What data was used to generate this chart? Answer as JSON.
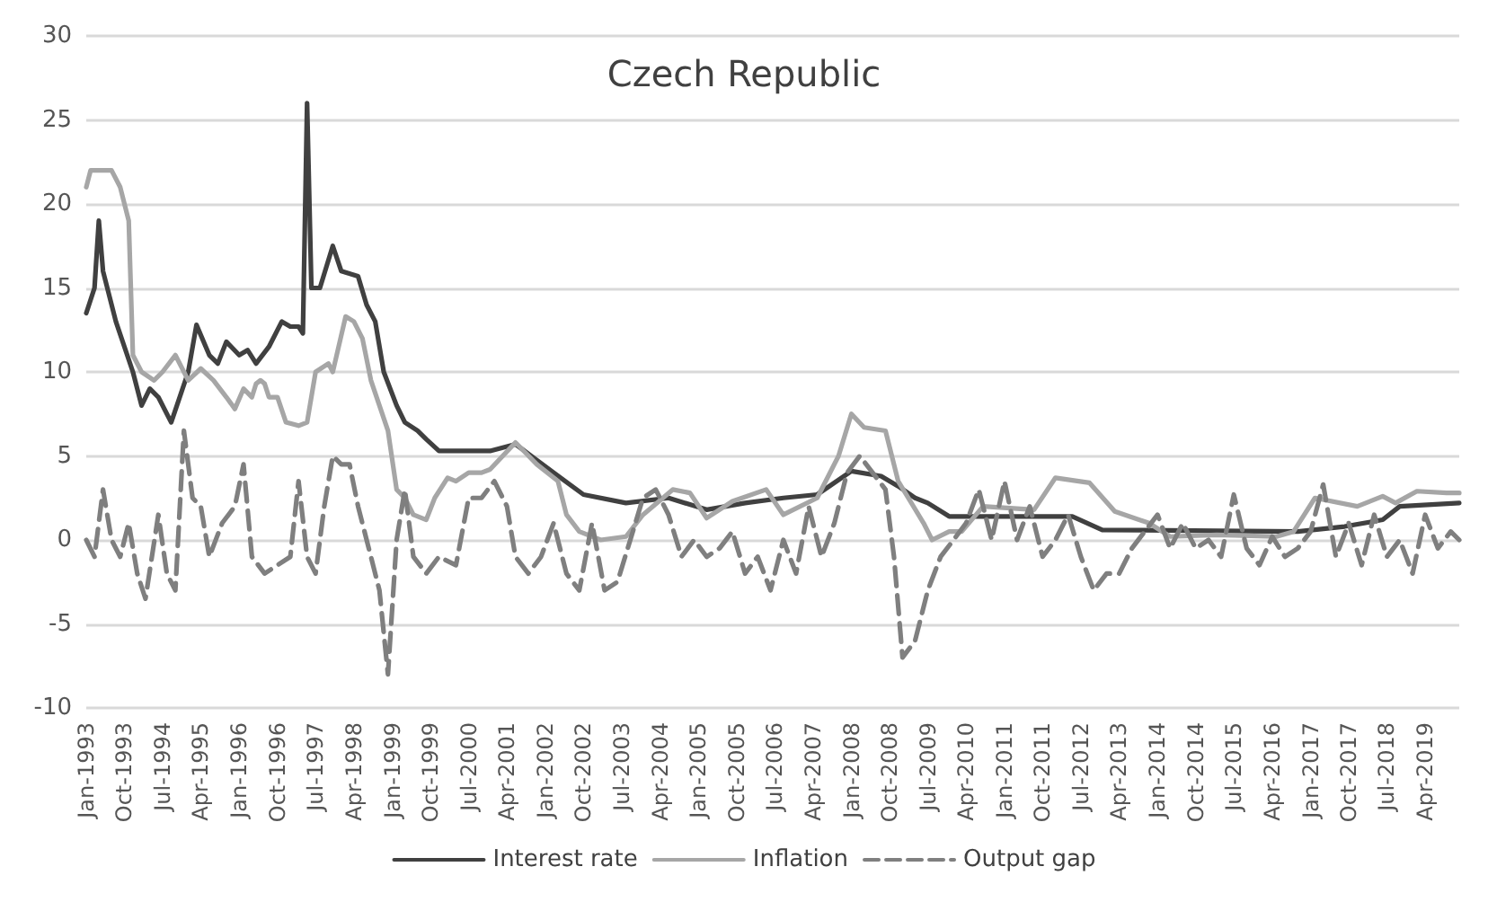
{
  "chart_data": {
    "type": "line",
    "title": "Czech Republic",
    "ylim": [
      -10,
      30
    ],
    "yticks": [
      -10,
      -5,
      0,
      5,
      10,
      15,
      20,
      25,
      30
    ],
    "xlim": [
      "1993-01",
      "2019-12"
    ],
    "xticks": [
      {
        "value": "1993-01",
        "label": "Jan-1993"
      },
      {
        "value": "1993-10",
        "label": "Oct-1993"
      },
      {
        "value": "1994-07",
        "label": "Jul-1994"
      },
      {
        "value": "1995-04",
        "label": "Apr-1995"
      },
      {
        "value": "1996-01",
        "label": "Jan-1996"
      },
      {
        "value": "1996-10",
        "label": "Oct-1996"
      },
      {
        "value": "1997-07",
        "label": "Jul-1997"
      },
      {
        "value": "1998-04",
        "label": "Apr-1998"
      },
      {
        "value": "1999-01",
        "label": "Jan-1999"
      },
      {
        "value": "1999-10",
        "label": "Oct-1999"
      },
      {
        "value": "2000-07",
        "label": "Jul-2000"
      },
      {
        "value": "2001-04",
        "label": "Apr-2001"
      },
      {
        "value": "2002-01",
        "label": "Jan-2002"
      },
      {
        "value": "2002-10",
        "label": "Oct-2002"
      },
      {
        "value": "2003-07",
        "label": "Jul-2003"
      },
      {
        "value": "2004-04",
        "label": "Apr-2004"
      },
      {
        "value": "2005-01",
        "label": "Jan-2005"
      },
      {
        "value": "2005-10",
        "label": "Oct-2005"
      },
      {
        "value": "2006-07",
        "label": "Jul-2006"
      },
      {
        "value": "2007-04",
        "label": "Apr-2007"
      },
      {
        "value": "2008-01",
        "label": "Jan-2008"
      },
      {
        "value": "2008-10",
        "label": "Oct-2008"
      },
      {
        "value": "2009-07",
        "label": "Jul-2009"
      },
      {
        "value": "2010-04",
        "label": "Apr-2010"
      },
      {
        "value": "2011-01",
        "label": "Jan-2011"
      },
      {
        "value": "2011-10",
        "label": "Oct-2011"
      },
      {
        "value": "2012-07",
        "label": "Jul-2012"
      },
      {
        "value": "2013-04",
        "label": "Apr-2013"
      },
      {
        "value": "2014-01",
        "label": "Jan-2014"
      },
      {
        "value": "2014-10",
        "label": "Oct-2014"
      },
      {
        "value": "2015-07",
        "label": "Jul-2015"
      },
      {
        "value": "2016-04",
        "label": "Apr-2016"
      },
      {
        "value": "2017-01",
        "label": "Jan-2017"
      },
      {
        "value": "2017-10",
        "label": "Oct-2017"
      },
      {
        "value": "2018-07",
        "label": "Jul-2018"
      },
      {
        "value": "2019-04",
        "label": "Apr-2019"
      }
    ],
    "grid": "y",
    "legend": "bottom",
    "marker": "none",
    "series": [
      {
        "name": "Interest rate",
        "color": "#404040",
        "line_style": "solid",
        "x": [
          "1993-01",
          "1993-03",
          "1993-04",
          "1993-05",
          "1993-08",
          "1993-12",
          "1994-02",
          "1994-04",
          "1994-06",
          "1994-09",
          "1994-11",
          "1995-01",
          "1995-03",
          "1995-06",
          "1995-08",
          "1995-10",
          "1996-01",
          "1996-03",
          "1996-05",
          "1996-08",
          "1996-11",
          "1997-01",
          "1997-03",
          "1997-04",
          "1997-05",
          "1997-06",
          "1997-08",
          "1997-11",
          "1998-01",
          "1998-05",
          "1998-07",
          "1998-09",
          "1998-11",
          "1999-02",
          "1999-04",
          "1999-07",
          "1999-09",
          "1999-12",
          "2000-12",
          "2001-06",
          "2002-03",
          "2002-10",
          "2003-08",
          "2004-06",
          "2005-03",
          "2005-12",
          "2006-09",
          "2007-05",
          "2008-01",
          "2008-08",
          "2008-12",
          "2009-04",
          "2009-07",
          "2009-12",
          "2010-03",
          "2012-05",
          "2012-12",
          "2016-10",
          "2017-09",
          "2018-06",
          "2018-10",
          "2019-12"
        ],
        "values": [
          13.5,
          15,
          19,
          16,
          13,
          10,
          8,
          9,
          8.5,
          7,
          8.5,
          10,
          12.8,
          11,
          10.5,
          11.8,
          11,
          11.3,
          10.5,
          11.5,
          13,
          12.7,
          12.7,
          12.3,
          26,
          15,
          15,
          17.5,
          16,
          15.7,
          14,
          13,
          10,
          8,
          7,
          6.5,
          6,
          5.3,
          5.3,
          5.7,
          4,
          2.7,
          2.2,
          2.5,
          1.8,
          2.2,
          2.5,
          2.7,
          4.1,
          3.8,
          3.2,
          2.5,
          2.2,
          1.4,
          1.4,
          1.4,
          0.6,
          0.5,
          0.8,
          1.2,
          2,
          2.2
        ]
      },
      {
        "name": "Inflation",
        "color": "#a6a6a6",
        "line_style": "solid",
        "x": [
          "1993-01",
          "1993-02",
          "1993-07",
          "1993-09",
          "1993-11",
          "1993-12",
          "1994-02",
          "1994-05",
          "1994-07",
          "1994-10",
          "1995-01",
          "1995-04",
          "1995-07",
          "1995-10",
          "1995-12",
          "1996-02",
          "1996-04",
          "1996-05",
          "1996-06",
          "1996-07",
          "1996-08",
          "1996-10",
          "1996-12",
          "1997-03",
          "1997-05",
          "1997-07",
          "1997-10",
          "1997-11",
          "1998-02",
          "1998-04",
          "1998-06",
          "1998-08",
          "1998-10",
          "1998-12",
          "1999-02",
          "1999-04",
          "1999-06",
          "1999-09",
          "1999-11",
          "2000-02",
          "2000-04",
          "2000-07",
          "2000-10",
          "2000-12",
          "2001-06",
          "2001-11",
          "2002-04",
          "2002-06",
          "2002-09",
          "2003-02",
          "2003-08",
          "2003-12",
          "2004-07",
          "2004-11",
          "2005-03",
          "2005-09",
          "2006-05",
          "2006-09",
          "2007-05",
          "2007-10",
          "2008-01",
          "2008-04",
          "2008-09",
          "2008-12",
          "2009-06",
          "2009-08",
          "2009-12",
          "2010-03",
          "2010-08",
          "2011-08",
          "2012-01",
          "2012-09",
          "2013-03",
          "2013-11",
          "2014-04",
          "2015-03",
          "2016-05",
          "2016-09",
          "2017-02",
          "2017-12",
          "2018-06",
          "2018-09",
          "2019-02",
          "2019-09",
          "2019-12"
        ],
        "values": [
          21,
          22,
          22,
          21,
          19,
          11,
          10,
          9.5,
          10,
          11,
          9.5,
          10.2,
          9.5,
          8.5,
          7.8,
          9,
          8.5,
          9.3,
          9.5,
          9.3,
          8.5,
          8.5,
          7,
          6.8,
          7,
          10,
          10.5,
          10,
          13.3,
          13,
          12,
          9.5,
          8,
          6.5,
          3,
          2.5,
          1.5,
          1.2,
          2.5,
          3.7,
          3.5,
          4,
          4,
          4.2,
          5.8,
          4.5,
          3.5,
          1.5,
          0.5,
          0,
          0.2,
          1.5,
          3,
          2.8,
          1.3,
          2.3,
          3,
          1.5,
          2.5,
          5,
          7.5,
          6.7,
          6.5,
          3.5,
          1,
          0,
          0.5,
          0.5,
          2,
          1.8,
          3.7,
          3.4,
          1.7,
          1,
          0.2,
          0.3,
          0.2,
          0.5,
          2.5,
          2,
          2.6,
          2.2,
          2.9,
          2.8,
          2.8
        ]
      },
      {
        "name": "Output gap",
        "color": "#7f7f7f",
        "line_style": "dashed",
        "x": [
          "1993-01",
          "1993-03",
          "1993-05",
          "1993-07",
          "1993-09",
          "1993-11",
          "1994-01",
          "1994-03",
          "1994-06",
          "1994-08",
          "1994-10",
          "1994-12",
          "1995-02",
          "1995-04",
          "1995-06",
          "1995-09",
          "1995-12",
          "1996-02",
          "1996-04",
          "1996-07",
          "1996-10",
          "1997-01",
          "1997-03",
          "1997-05",
          "1997-07",
          "1997-09",
          "1997-11",
          "1998-01",
          "1998-03",
          "1998-05",
          "1998-08",
          "1998-10",
          "1998-12",
          "1999-02",
          "1999-04",
          "1999-06",
          "1999-09",
          "1999-12",
          "2000-04",
          "2000-07",
          "2000-10",
          "2001-01",
          "2001-04",
          "2001-06",
          "2001-09",
          "2001-12",
          "2002-03",
          "2002-06",
          "2002-09",
          "2002-12",
          "2003-03",
          "2003-06",
          "2003-09",
          "2003-12",
          "2004-03",
          "2004-06",
          "2004-09",
          "2004-12",
          "2005-03",
          "2005-06",
          "2005-09",
          "2005-12",
          "2006-03",
          "2006-06",
          "2006-09",
          "2006-12",
          "2007-03",
          "2007-06",
          "2007-09",
          "2007-12",
          "2008-03",
          "2008-06",
          "2008-09",
          "2008-11",
          "2009-01",
          "2009-04",
          "2009-07",
          "2009-10",
          "2010-01",
          "2010-04",
          "2010-07",
          "2010-10",
          "2011-01",
          "2011-04",
          "2011-07",
          "2011-10",
          "2012-01",
          "2012-04",
          "2012-07",
          "2012-10",
          "2013-01",
          "2013-04",
          "2013-07",
          "2013-10",
          "2014-01",
          "2014-04",
          "2014-07",
          "2014-10",
          "2015-01",
          "2015-04",
          "2015-07",
          "2015-10",
          "2016-01",
          "2016-04",
          "2016-07",
          "2016-10",
          "2017-01",
          "2017-04",
          "2017-07",
          "2017-10",
          "2018-01",
          "2018-04",
          "2018-07",
          "2018-10",
          "2019-01",
          "2019-04",
          "2019-07",
          "2019-10",
          "2019-12"
        ],
        "values": [
          0,
          -1,
          3,
          0,
          -1,
          1,
          -2,
          -3.5,
          1.5,
          -2,
          -3,
          6.5,
          2.5,
          2,
          -1,
          1,
          2,
          4.5,
          -1,
          -2,
          -1.5,
          -1,
          3.5,
          -1,
          -2,
          2,
          5,
          4.5,
          4.5,
          2,
          -1,
          -3,
          -8,
          0,
          3,
          -1,
          -2,
          -1,
          -1.5,
          2.5,
          2.5,
          3.5,
          2,
          -1,
          -2,
          -1,
          1,
          -2,
          -3,
          1,
          -3,
          -2.5,
          0,
          2.5,
          3,
          1.5,
          -1,
          0,
          -1,
          -0.5,
          0.5,
          -2,
          -1,
          -3,
          0,
          -2,
          2,
          -1,
          1,
          4,
          5,
          4,
          3,
          -1,
          -7,
          -6,
          -3,
          -1,
          0,
          1,
          3,
          0,
          3.5,
          0,
          2,
          -1,
          0,
          1.5,
          -1,
          -3,
          -2,
          -2,
          -0.5,
          0.5,
          1.5,
          -0.5,
          1,
          -0.5,
          0,
          -1,
          2.7,
          -0.5,
          -1.5,
          0.2,
          -1,
          -0.5,
          0.5,
          3.3,
          -1,
          1,
          -1.5,
          1.5,
          -1,
          0,
          -2,
          1.5,
          -0.5,
          0.5,
          0
        ]
      }
    ]
  }
}
